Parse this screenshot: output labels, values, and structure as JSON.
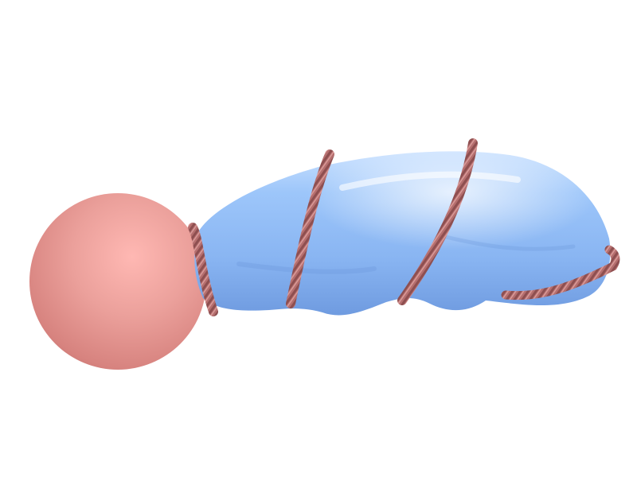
{
  "scene": {
    "background_color": "#ffffff",
    "objects": [
      {
        "name": "pink-sphere",
        "color": "#e99692"
      },
      {
        "name": "blue-elongated-balloon",
        "color": "#8fb9f7"
      },
      {
        "name": "twisted-rope",
        "color": "#b56f6f",
        "wraps": 4
      }
    ]
  }
}
